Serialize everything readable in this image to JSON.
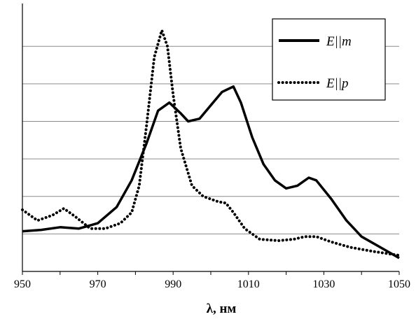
{
  "chart_data": {
    "type": "line",
    "title": "",
    "xlabel": "λ, нм",
    "ylabel": "",
    "xlim": [
      950,
      1050
    ],
    "ylim": [
      0,
      1
    ],
    "x_ticks": [
      950,
      970,
      990,
      1010,
      1030,
      1050
    ],
    "y_gridlines": [
      0.14,
      0.28,
      0.42,
      0.56,
      0.7,
      0.84
    ],
    "grid": true,
    "legend_position": "top-right",
    "series": [
      {
        "name": "E||m",
        "style": "solid",
        "points": [
          [
            950,
            0.15
          ],
          [
            955,
            0.155
          ],
          [
            960,
            0.165
          ],
          [
            965,
            0.16
          ],
          [
            970,
            0.18
          ],
          [
            975,
            0.24
          ],
          [
            979,
            0.34
          ],
          [
            983,
            0.48
          ],
          [
            986,
            0.6
          ],
          [
            989,
            0.63
          ],
          [
            992,
            0.59
          ],
          [
            994,
            0.56
          ],
          [
            997,
            0.57
          ],
          [
            1000,
            0.62
          ],
          [
            1003,
            0.67
          ],
          [
            1006,
            0.69
          ],
          [
            1008,
            0.63
          ],
          [
            1011,
            0.5
          ],
          [
            1014,
            0.4
          ],
          [
            1017,
            0.34
          ],
          [
            1020,
            0.31
          ],
          [
            1023,
            0.32
          ],
          [
            1026,
            0.35
          ],
          [
            1028,
            0.34
          ],
          [
            1032,
            0.27
          ],
          [
            1036,
            0.19
          ],
          [
            1040,
            0.13
          ],
          [
            1045,
            0.09
          ],
          [
            1050,
            0.05
          ]
        ]
      },
      {
        "name": "E||p",
        "style": "dotted",
        "points": [
          [
            950,
            0.23
          ],
          [
            954,
            0.19
          ],
          [
            958,
            0.21
          ],
          [
            961,
            0.235
          ],
          [
            964,
            0.205
          ],
          [
            968,
            0.16
          ],
          [
            972,
            0.16
          ],
          [
            976,
            0.18
          ],
          [
            979,
            0.22
          ],
          [
            981,
            0.32
          ],
          [
            983,
            0.55
          ],
          [
            985,
            0.8
          ],
          [
            987,
            0.9
          ],
          [
            988.5,
            0.84
          ],
          [
            990,
            0.66
          ],
          [
            992,
            0.46
          ],
          [
            995,
            0.32
          ],
          [
            998,
            0.28
          ],
          [
            1002,
            0.26
          ],
          [
            1004,
            0.255
          ],
          [
            1006,
            0.22
          ],
          [
            1009,
            0.16
          ],
          [
            1013,
            0.12
          ],
          [
            1018,
            0.115
          ],
          [
            1022,
            0.12
          ],
          [
            1025,
            0.13
          ],
          [
            1028,
            0.13
          ],
          [
            1032,
            0.11
          ],
          [
            1037,
            0.09
          ],
          [
            1043,
            0.075
          ],
          [
            1050,
            0.06
          ]
        ]
      }
    ]
  }
}
